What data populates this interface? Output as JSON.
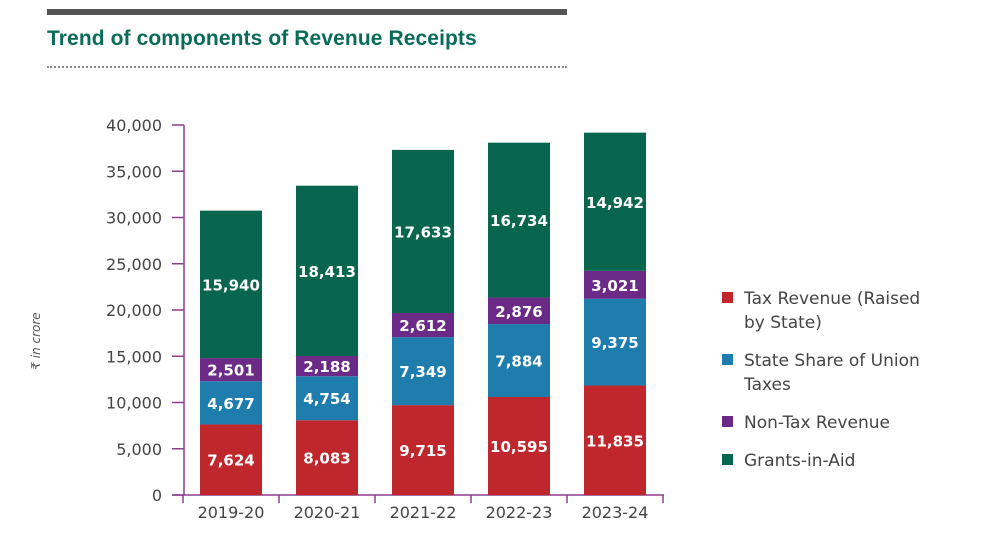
{
  "header": {
    "title": "Trend of components of Revenue Receipts"
  },
  "colors": {
    "tax_revenue": "#c0272d",
    "state_share": "#1f7dae",
    "non_tax": "#6b2a86",
    "grants": "#08664f",
    "axis": "#8e3c8e",
    "title": "#0a6b58"
  },
  "chart_data": {
    "type": "bar",
    "stacked": true,
    "title": "Trend of components of Revenue Receipts",
    "ylabel": "₹ in crore",
    "xlabel": "",
    "ylim": [
      0,
      40000
    ],
    "yticks": [
      0,
      5000,
      10000,
      15000,
      20000,
      25000,
      30000,
      35000,
      40000
    ],
    "ytick_labels": [
      "0",
      "5,000",
      "10,000",
      "15,000",
      "20,000",
      "25,000",
      "30,000",
      "35,000",
      "40,000"
    ],
    "categories": [
      "2019-20",
      "2020-21",
      "2021-22",
      "2022-23",
      "2023-24"
    ],
    "series": [
      {
        "name": "Tax Revenue (Raised by State)",
        "color": "#c0272d",
        "values": [
          7624,
          8083,
          9715,
          10595,
          11835
        ],
        "labels": [
          "7,624",
          "8,083",
          "9,715",
          "10,595",
          "11,835"
        ]
      },
      {
        "name": "State Share of Union Taxes",
        "color": "#1f7dae",
        "values": [
          4677,
          4754,
          7349,
          7884,
          9375
        ],
        "labels": [
          "4,677",
          "4,754",
          "7,349",
          "7,884",
          "9,375"
        ]
      },
      {
        "name": "Non-Tax Revenue",
        "color": "#6b2a86",
        "values": [
          2501,
          2188,
          2612,
          2876,
          3021
        ],
        "labels": [
          "2,501",
          "2,188",
          "2,612",
          "2,876",
          "3,021"
        ]
      },
      {
        "name": "Grants-in-Aid",
        "color": "#08664f",
        "values": [
          15940,
          18413,
          17633,
          16734,
          14942
        ],
        "labels": [
          "15,940",
          "18,413",
          "17,633",
          "16,734",
          "14,942"
        ]
      }
    ],
    "legend": {
      "position": "right",
      "items": [
        {
          "label": "Tax Revenue (Raised by State)",
          "color": "#c0272d"
        },
        {
          "label": "State Share of Union Taxes",
          "color": "#1f7dae"
        },
        {
          "label": "Non-Tax Revenue",
          "color": "#6b2a86"
        },
        {
          "label": "Grants-in-Aid",
          "color": "#08664f"
        }
      ]
    }
  }
}
